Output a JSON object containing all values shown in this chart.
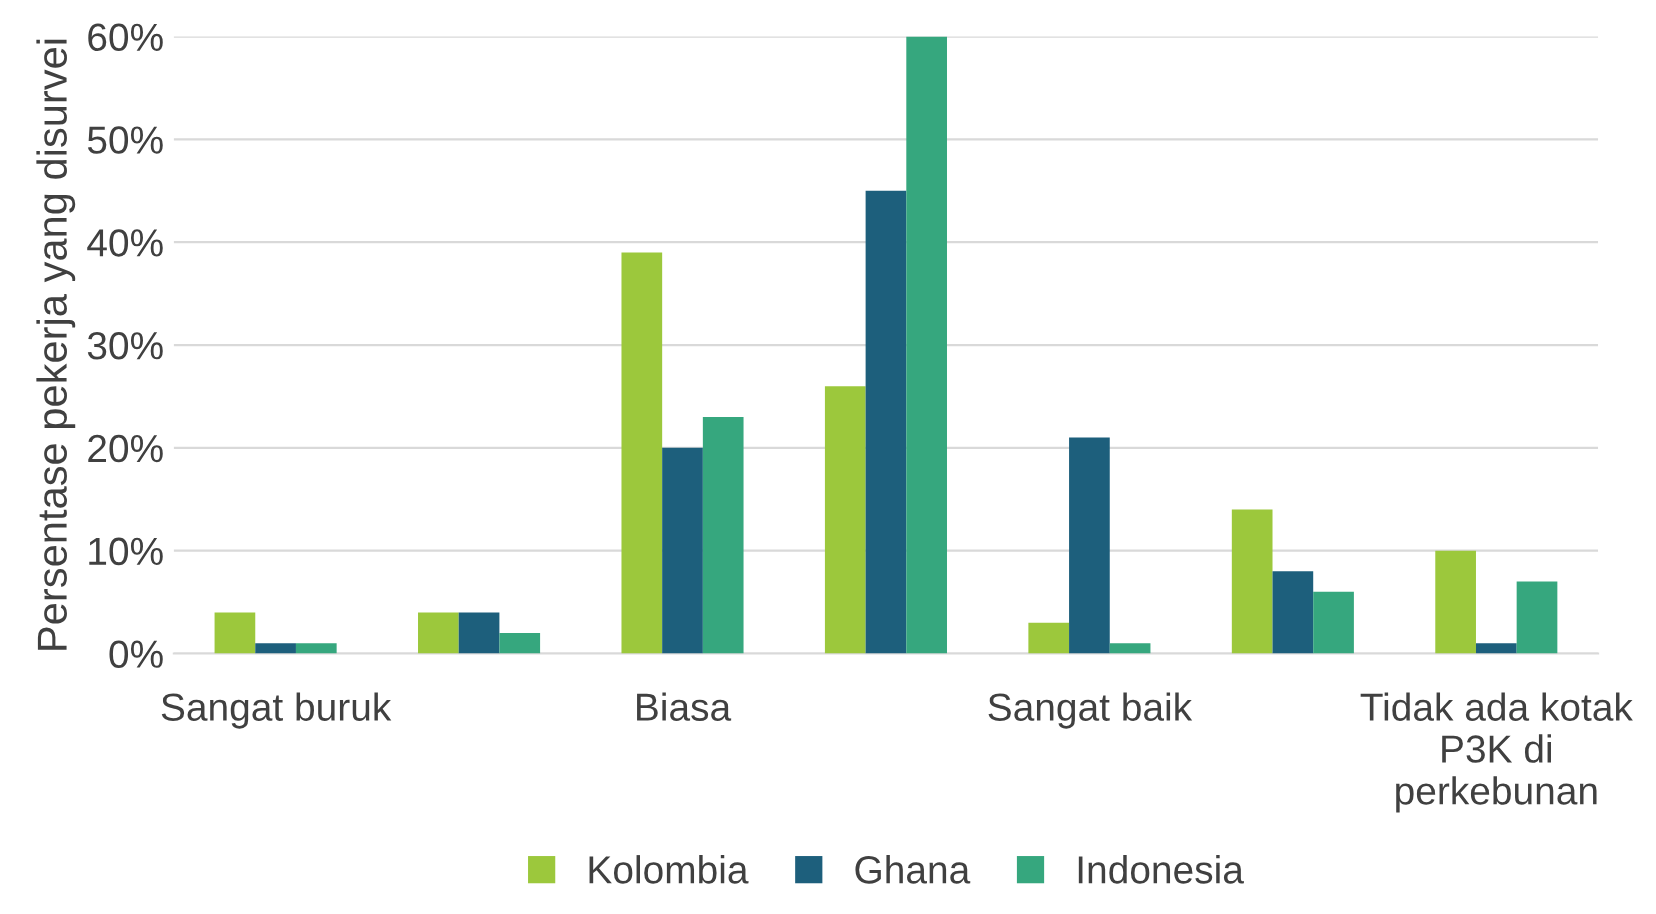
{
  "chart_data": {
    "type": "bar",
    "ylabel": "Persentase pekerja yang disurvei",
    "categories": [
      "Sangat buruk",
      null,
      "Biasa",
      null,
      "Sangat baik",
      null,
      "Tidak ada kotak\nP3K di\nperkebunan"
    ],
    "series": [
      {
        "name": "Kolombia",
        "color": "#9cc83c",
        "values": [
          4,
          4,
          39,
          26,
          3,
          14,
          10
        ]
      },
      {
        "name": "Ghana",
        "color": "#1d5f7c",
        "values": [
          1,
          4,
          20,
          45,
          21,
          8,
          1
        ]
      },
      {
        "name": "Indonesia",
        "color": "#36a77e",
        "values": [
          1,
          2,
          23,
          60,
          1,
          6,
          7
        ]
      }
    ],
    "ylim": [
      0,
      60
    ],
    "yticks": [
      {
        "value": 0,
        "label": "0%"
      },
      {
        "value": 10,
        "label": "10%"
      },
      {
        "value": 20,
        "label": "20%"
      },
      {
        "value": 30,
        "label": "30%"
      },
      {
        "value": 40,
        "label": "40%"
      },
      {
        "value": 50,
        "label": "50%"
      },
      {
        "value": 60,
        "label": "60%"
      }
    ],
    "grid": "y",
    "legend": "bottom"
  }
}
